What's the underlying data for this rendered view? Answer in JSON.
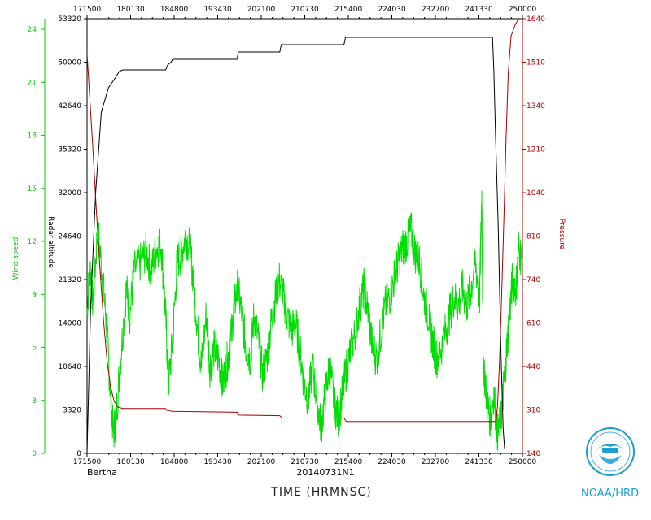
{
  "chart_data": {
    "type": "line",
    "storm": "Bertha",
    "flight_id": "20140731N1",
    "xlabel": "TIME (HRMNSC)",
    "x_ticks": [
      "171500",
      "180130",
      "184800",
      "193430",
      "202100",
      "210730",
      "215400",
      "224030",
      "232700",
      "241330",
      "250000"
    ],
    "left_wind_axis": {
      "label": "Wind speed",
      "color": "#00cc00",
      "ylim": [
        0,
        25
      ],
      "ticks": [
        "0",
        "3",
        "6",
        "9",
        "12",
        "15",
        "18",
        "21",
        "24"
      ]
    },
    "left_altitude_axis": {
      "label": "Radar altitude",
      "color": "#000000",
      "ticks": [
        "0",
        "3320",
        "10640",
        "14000",
        "21320",
        "24640",
        "32000",
        "35320",
        "42640",
        "50000",
        "53320"
      ]
    },
    "right_pressure_axis": {
      "label": "Pressure",
      "color": "#aa0000",
      "ylim": [
        140,
        1640
      ],
      "ticks": [
        "140",
        "310",
        "440",
        "610",
        "740",
        "810",
        "1040",
        "1210",
        "1340",
        "1510",
        "1640"
      ]
    },
    "series": [
      {
        "name": "Wind speed",
        "color": "#00dd00",
        "axis": "wind",
        "points": [
          [
            0,
            8
          ],
          [
            0.4,
            11
          ],
          [
            0.8,
            8.5
          ],
          [
            1.5,
            13
          ],
          [
            2.2,
            10
          ],
          [
            2.7,
            7.5
          ],
          [
            3.2,
            4
          ],
          [
            3.7,
            1
          ],
          [
            4.2,
            2.8
          ],
          [
            4.8,
            6
          ],
          [
            5.5,
            9.5
          ],
          [
            6,
            8
          ],
          [
            6.6,
            10.5
          ],
          [
            7.5,
            11
          ],
          [
            8.3,
            11.6
          ],
          [
            9,
            10.5
          ],
          [
            9.7,
            11.8
          ],
          [
            10.4,
            12
          ],
          [
            11,
            8
          ],
          [
            11.4,
            4
          ],
          [
            12,
            6.5
          ],
          [
            12.6,
            11
          ],
          [
            13.2,
            11.5
          ],
          [
            13.8,
            12.5
          ],
          [
            14.4,
            11.8
          ],
          [
            14.9,
            10
          ],
          [
            15.5,
            7
          ],
          [
            16,
            5
          ],
          [
            16.7,
            8
          ],
          [
            17.2,
            5
          ],
          [
            17.8,
            6
          ],
          [
            18.4,
            5.5
          ],
          [
            19,
            4
          ],
          [
            19.5,
            5
          ],
          [
            20,
            6
          ],
          [
            20.6,
            8.5
          ],
          [
            21.1,
            9.5
          ],
          [
            21.7,
            8
          ],
          [
            22.3,
            6
          ],
          [
            22.9,
            5.5
          ],
          [
            23.4,
            8
          ],
          [
            24,
            6.5
          ],
          [
            24.6,
            4.5
          ],
          [
            25.2,
            5.5
          ],
          [
            25.8,
            7.5
          ],
          [
            26.4,
            9
          ],
          [
            26.9,
            10
          ],
          [
            27.5,
            9
          ],
          [
            28,
            8
          ],
          [
            28.6,
            7
          ],
          [
            29.2,
            7.5
          ],
          [
            29.8,
            6
          ],
          [
            30.4,
            4
          ],
          [
            31,
            3.2
          ],
          [
            31.6,
            5
          ],
          [
            32.2,
            3
          ],
          [
            32.8,
            1.5
          ],
          [
            33.4,
            3.5
          ],
          [
            34,
            5
          ],
          [
            34.6,
            3
          ],
          [
            35.2,
            2
          ],
          [
            35.8,
            3.5
          ],
          [
            36.4,
            5
          ],
          [
            37,
            6
          ],
          [
            37.6,
            7
          ],
          [
            38.2,
            8.5
          ],
          [
            38.8,
            9.5
          ],
          [
            39.4,
            8
          ],
          [
            40,
            6
          ],
          [
            40.6,
            5.5
          ],
          [
            41.2,
            7
          ],
          [
            41.8,
            8.5
          ],
          [
            42.4,
            9
          ],
          [
            43,
            10
          ],
          [
            43.6,
            11
          ],
          [
            44.2,
            11.8
          ],
          [
            44.8,
            12.2
          ],
          [
            45.4,
            12.8
          ],
          [
            46,
            11.5
          ],
          [
            46.6,
            11
          ],
          [
            47.2,
            9
          ],
          [
            47.8,
            8
          ],
          [
            48.4,
            6.5
          ],
          [
            49,
            5.5
          ],
          [
            49.6,
            6
          ],
          [
            50.2,
            7
          ],
          [
            50.8,
            8
          ],
          [
            51.4,
            9
          ],
          [
            52,
            8.5
          ],
          [
            52.6,
            9.5
          ],
          [
            53.2,
            8.5
          ],
          [
            53.8,
            9.5
          ],
          [
            54.4,
            11
          ],
          [
            55,
            9
          ],
          [
            55.3,
            15
          ],
          [
            55.5,
            5.5
          ],
          [
            56,
            3
          ],
          [
            56.5,
            2
          ],
          [
            57,
            3.5
          ],
          [
            57.5,
            1
          ],
          [
            58,
            2
          ],
          [
            58.4,
            4
          ],
          [
            58.8,
            6
          ],
          [
            59.2,
            8
          ],
          [
            59.6,
            10
          ],
          [
            60.1,
            9.5
          ],
          [
            60.5,
            11.8
          ],
          [
            61,
            11
          ]
        ]
      },
      {
        "name": "Radar altitude",
        "color": "#000000",
        "axis": "altitude",
        "points": [
          [
            0,
            0
          ],
          [
            0.5,
            18
          ],
          [
            1.2,
            32
          ],
          [
            2,
            42
          ],
          [
            3,
            45
          ],
          [
            3.8,
            46
          ],
          [
            4.5,
            47
          ],
          [
            5,
            47.2
          ],
          [
            11,
            47.2
          ],
          [
            11.3,
            47.8
          ],
          [
            11.8,
            48.2
          ],
          [
            12,
            48.5
          ],
          [
            21,
            48.5
          ],
          [
            21.2,
            49.4
          ],
          [
            27,
            49.4
          ],
          [
            27.2,
            50.3
          ],
          [
            36,
            50.3
          ],
          [
            36.2,
            51.2
          ],
          [
            56.8,
            51.2
          ],
          [
            57,
            47
          ],
          [
            57.2,
            40
          ],
          [
            57.6,
            28
          ],
          [
            58,
            12
          ],
          [
            58.3,
            3
          ],
          [
            58.5,
            0.5
          ]
        ]
      },
      {
        "name": "Pressure",
        "color": "#aa0000",
        "axis": "pressure",
        "points": [
          [
            0,
            1520
          ],
          [
            0.3,
            1400
          ],
          [
            0.8,
            1200
          ],
          [
            1.3,
            980
          ],
          [
            1.8,
            780
          ],
          [
            2.3,
            600
          ],
          [
            2.8,
            460
          ],
          [
            3.3,
            370
          ],
          [
            3.8,
            320
          ],
          [
            4.3,
            300
          ],
          [
            5,
            295
          ],
          [
            11,
            295
          ],
          [
            11.2,
            288
          ],
          [
            12,
            285
          ],
          [
            21,
            282
          ],
          [
            21.3,
            272
          ],
          [
            27,
            270
          ],
          [
            27.3,
            262
          ],
          [
            36,
            262
          ],
          [
            36.3,
            250
          ],
          [
            57.3,
            250
          ],
          [
            57.5,
            300
          ],
          [
            57.8,
            460
          ],
          [
            58.1,
            700
          ],
          [
            58.4,
            950
          ],
          [
            58.7,
            1220
          ],
          [
            59,
            1450
          ],
          [
            59.4,
            1580
          ],
          [
            60,
            1620
          ],
          [
            60.5,
            1640
          ]
        ]
      }
    ]
  },
  "texts": {
    "storm": "Bertha",
    "flight_id": "20140731N1",
    "xlabel": "TIME (HRMNSC)",
    "wind_label": "Wind speed",
    "alt_label": "Radar altitude",
    "pres_label": "Pressure",
    "noaa": "NOAA/HRD"
  }
}
